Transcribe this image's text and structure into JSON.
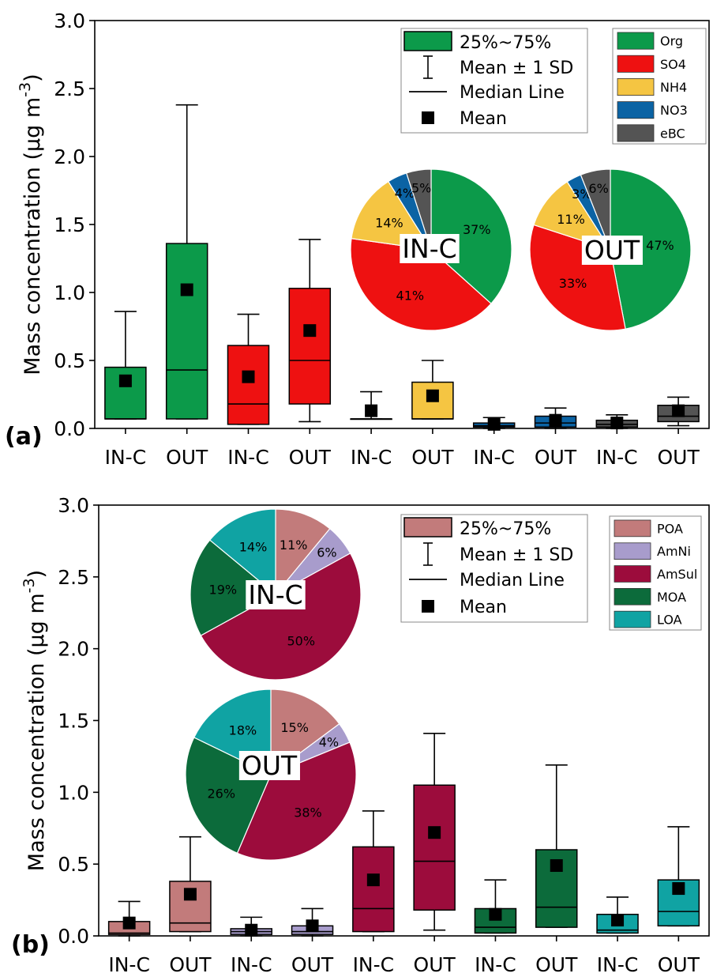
{
  "chart_data": [
    {
      "type": "box",
      "panel_label": "(a)",
      "ylabel": "Mass concentration (μg m⁻³)",
      "ylabel_text": "Mass concentration (μg m",
      "ylabel_exp": "-3",
      "ylabel_close": ")",
      "ylim": [
        0,
        3.0
      ],
      "y_ticks": [
        "0.0",
        "0.5",
        "1.0",
        "1.5",
        "2.0",
        "2.5",
        "3.0"
      ],
      "categories": [
        "IN-C",
        "OUT",
        "IN-C",
        "OUT",
        "IN-C",
        "OUT",
        "IN-C",
        "OUT",
        "IN-C",
        "OUT"
      ],
      "boxes": [
        {
          "species": "Org",
          "group": "IN-C",
          "q1": 0.07,
          "median": 0.07,
          "q3": 0.45,
          "mean": 0.35,
          "sd_low": 0.07,
          "sd_high": 0.86
        },
        {
          "species": "Org",
          "group": "OUT",
          "q1": 0.07,
          "median": 0.43,
          "q3": 1.36,
          "mean": 1.02,
          "sd_low": 0.07,
          "sd_high": 2.38
        },
        {
          "species": "SO4",
          "group": "IN-C",
          "q1": 0.03,
          "median": 0.18,
          "q3": 0.61,
          "mean": 0.38,
          "sd_low": 0.03,
          "sd_high": 0.84
        },
        {
          "species": "SO4",
          "group": "OUT",
          "q1": 0.18,
          "median": 0.5,
          "q3": 1.03,
          "mean": 0.72,
          "sd_low": 0.05,
          "sd_high": 1.39
        },
        {
          "species": "NH4",
          "group": "IN-C",
          "q1": 0.07,
          "median": 0.07,
          "q3": 0.07,
          "mean": 0.13,
          "sd_low": 0.07,
          "sd_high": 0.27
        },
        {
          "species": "NH4",
          "group": "OUT",
          "q1": 0.07,
          "median": 0.07,
          "q3": 0.34,
          "mean": 0.24,
          "sd_low": 0.07,
          "sd_high": 0.5
        },
        {
          "species": "NO3",
          "group": "IN-C",
          "q1": 0.01,
          "median": 0.02,
          "q3": 0.04,
          "mean": 0.03,
          "sd_low": 0.0,
          "sd_high": 0.08
        },
        {
          "species": "NO3",
          "group": "OUT",
          "q1": 0.01,
          "median": 0.04,
          "q3": 0.09,
          "mean": 0.06,
          "sd_low": 0.0,
          "sd_high": 0.15
        },
        {
          "species": "eBC",
          "group": "IN-C",
          "q1": 0.01,
          "median": 0.03,
          "q3": 0.06,
          "mean": 0.04,
          "sd_low": 0.0,
          "sd_high": 0.1
        },
        {
          "species": "eBC",
          "group": "OUT",
          "q1": 0.05,
          "median": 0.09,
          "q3": 0.17,
          "mean": 0.13,
          "sd_low": 0.02,
          "sd_high": 0.23
        }
      ],
      "box_legend": {
        "box": "25%~75%",
        "sd": "Mean ± 1 SD",
        "median": "Median Line",
        "mean": "Mean"
      },
      "species_legend": [
        {
          "name": "Org",
          "color": "#0c9a4a"
        },
        {
          "name": "SO4",
          "color": "#ee1111"
        },
        {
          "name": "NH4",
          "color": "#f5c542"
        },
        {
          "name": "NO3",
          "color": "#0b63a4"
        },
        {
          "name": "eBC",
          "color": "#545454"
        }
      ],
      "pies": [
        {
          "label": "IN-C",
          "slices": [
            {
              "name": "Org",
              "value": 37,
              "label": "37%"
            },
            {
              "name": "SO4",
              "value": 41,
              "label": "41%"
            },
            {
              "name": "NH4",
              "value": 14,
              "label": "14%"
            },
            {
              "name": "NO3",
              "value": 4,
              "label": "4%"
            },
            {
              "name": "eBC",
              "value": 5,
              "label": "5%"
            }
          ]
        },
        {
          "label": "OUT",
          "slices": [
            {
              "name": "Org",
              "value": 47,
              "label": "47%"
            },
            {
              "name": "SO4",
              "value": 33,
              "label": "33%"
            },
            {
              "name": "NH4",
              "value": 11,
              "label": "11%"
            },
            {
              "name": "NO3",
              "value": 3,
              "label": "3%"
            },
            {
              "name": "eBC",
              "value": 6,
              "label": "6%"
            }
          ]
        }
      ]
    },
    {
      "type": "box",
      "panel_label": "(b)",
      "ylabel": "Mass concentration (μg m⁻³)",
      "ylabel_text": "Mass concentration (μg m",
      "ylabel_exp": "-3",
      "ylabel_close": ")",
      "ylim": [
        0,
        3.0
      ],
      "y_ticks": [
        "0.0",
        "0.5",
        "1.0",
        "1.5",
        "2.0",
        "2.5",
        "3.0"
      ],
      "categories": [
        "IN-C",
        "OUT",
        "IN-C",
        "OUT",
        "IN-C",
        "OUT",
        "IN-C",
        "OUT",
        "IN-C",
        "OUT"
      ],
      "boxes": [
        {
          "species": "POA",
          "group": "IN-C",
          "q1": 0.01,
          "median": 0.02,
          "q3": 0.1,
          "mean": 0.09,
          "sd_low": 0.0,
          "sd_high": 0.24
        },
        {
          "species": "POA",
          "group": "OUT",
          "q1": 0.03,
          "median": 0.09,
          "q3": 0.38,
          "mean": 0.29,
          "sd_low": 0.03,
          "sd_high": 0.69
        },
        {
          "species": "AmNi",
          "group": "IN-C",
          "q1": 0.01,
          "median": 0.03,
          "q3": 0.05,
          "mean": 0.04,
          "sd_low": 0.0,
          "sd_high": 0.13
        },
        {
          "species": "AmNi",
          "group": "OUT",
          "q1": 0.01,
          "median": 0.03,
          "q3": 0.07,
          "mean": 0.07,
          "sd_low": 0.0,
          "sd_high": 0.19
        },
        {
          "species": "AmSul",
          "group": "IN-C",
          "q1": 0.03,
          "median": 0.19,
          "q3": 0.62,
          "mean": 0.39,
          "sd_low": 0.03,
          "sd_high": 0.87
        },
        {
          "species": "AmSul",
          "group": "OUT",
          "q1": 0.18,
          "median": 0.52,
          "q3": 1.05,
          "mean": 0.72,
          "sd_low": 0.04,
          "sd_high": 1.41
        },
        {
          "species": "MOA",
          "group": "IN-C",
          "q1": 0.02,
          "median": 0.06,
          "q3": 0.19,
          "mean": 0.15,
          "sd_low": 0.02,
          "sd_high": 0.39
        },
        {
          "species": "MOA",
          "group": "OUT",
          "q1": 0.06,
          "median": 0.2,
          "q3": 0.6,
          "mean": 0.49,
          "sd_low": 0.06,
          "sd_high": 1.19
        },
        {
          "species": "LOA",
          "group": "IN-C",
          "q1": 0.02,
          "median": 0.04,
          "q3": 0.15,
          "mean": 0.11,
          "sd_low": 0.02,
          "sd_high": 0.27
        },
        {
          "species": "LOA",
          "group": "OUT",
          "q1": 0.07,
          "median": 0.17,
          "q3": 0.39,
          "mean": 0.33,
          "sd_low": 0.07,
          "sd_high": 0.76
        }
      ],
      "box_legend": {
        "box": "25%~75%",
        "sd": "Mean ± 1 SD",
        "median": "Median Line",
        "mean": "Mean"
      },
      "species_legend": [
        {
          "name": "POA",
          "color": "#c27b7b"
        },
        {
          "name": "AmNi",
          "color": "#a89ccc"
        },
        {
          "name": "AmSul",
          "color": "#9c0c3c"
        },
        {
          "name": "MOA",
          "color": "#0c6b3b"
        },
        {
          "name": "LOA",
          "color": "#10a3a3"
        }
      ],
      "pies": [
        {
          "label": "IN-C",
          "slices": [
            {
              "name": "POA",
              "value": 11,
              "label": "11%"
            },
            {
              "name": "AmNi",
              "value": 6,
              "label": "6%"
            },
            {
              "name": "AmSul",
              "value": 50,
              "label": "50%"
            },
            {
              "name": "MOA",
              "value": 19,
              "label": "19%"
            },
            {
              "name": "LOA",
              "value": 14,
              "label": "14%"
            }
          ]
        },
        {
          "label": "OUT",
          "slices": [
            {
              "name": "POA",
              "value": 15,
              "label": "15%"
            },
            {
              "name": "AmNi",
              "value": 4,
              "label": "4%"
            },
            {
              "name": "AmSul",
              "value": 38,
              "label": "38%"
            },
            {
              "name": "MOA",
              "value": 26,
              "label": "26%"
            },
            {
              "name": "LOA",
              "value": 18,
              "label": "18%"
            }
          ]
        }
      ]
    }
  ]
}
